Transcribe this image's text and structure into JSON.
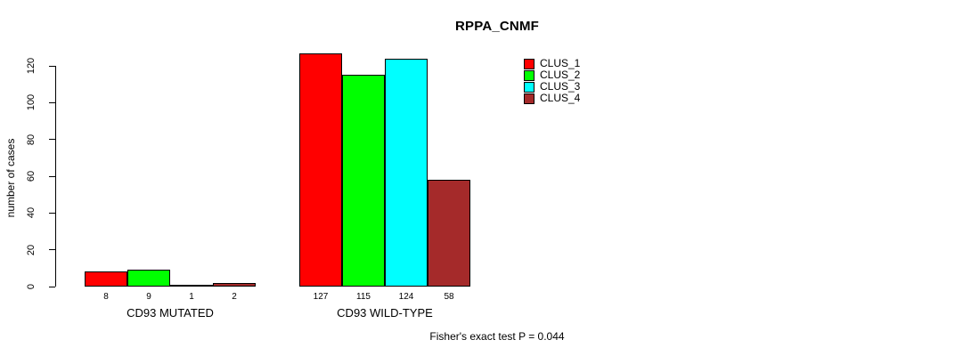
{
  "chart_data": {
    "type": "bar",
    "title": "RPPA_CNMF",
    "ylabel": "number of cases",
    "xlabel": "",
    "categories": [
      "CD93 MUTATED",
      "CD93 WILD-TYPE"
    ],
    "series": [
      {
        "name": "CLUS_1",
        "color": "#FF0000",
        "values": [
          8,
          127
        ]
      },
      {
        "name": "CLUS_2",
        "color": "#00FF00",
        "values": [
          9,
          115
        ]
      },
      {
        "name": "CLUS_3",
        "color": "#00FFFF",
        "values": [
          1,
          124
        ]
      },
      {
        "name": "CLUS_4",
        "color": "#A52A2A",
        "values": [
          2,
          58
        ]
      }
    ],
    "y_ticks": [
      0,
      20,
      40,
      60,
      80,
      100,
      120
    ],
    "ylim": [
      0,
      130
    ],
    "grid": false,
    "bar_value_labels": true,
    "legend_position": "top-right",
    "annotation": "Fisher's exact test P = 0.044"
  }
}
